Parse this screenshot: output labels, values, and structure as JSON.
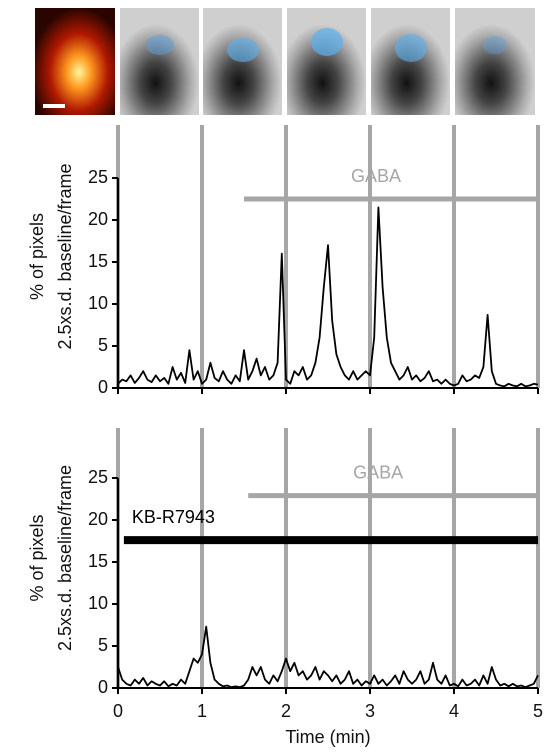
{
  "chart_data": [
    {
      "type": "line",
      "ylabel": [
        "% of pixels",
        "2.5xs.d. baseline/frame"
      ],
      "xlim": [
        0,
        5
      ],
      "ylim": [
        0,
        25
      ],
      "yticks": [
        0,
        5,
        10,
        15,
        20,
        25
      ],
      "markers": [
        0,
        1,
        2,
        3,
        4,
        5
      ],
      "marker_color": "#a6a6a6",
      "annotations": [
        {
          "text": "GABA",
          "x": [
            1.5,
            5
          ],
          "y": 22.5,
          "color": "#a6a6a6"
        }
      ],
      "series": [
        {
          "color": "#000000",
          "x": [
            0,
            0.05,
            0.1,
            0.15,
            0.2,
            0.25,
            0.3,
            0.35,
            0.4,
            0.45,
            0.5,
            0.55,
            0.6,
            0.65,
            0.7,
            0.75,
            0.8,
            0.85,
            0.9,
            0.95,
            1,
            1.05,
            1.1,
            1.15,
            1.2,
            1.25,
            1.3,
            1.35,
            1.4,
            1.45,
            1.5,
            1.55,
            1.6,
            1.65,
            1.7,
            1.75,
            1.8,
            1.85,
            1.9,
            1.95,
            2,
            2.05,
            2.1,
            2.15,
            2.2,
            2.25,
            2.3,
            2.35,
            2.4,
            2.45,
            2.5,
            2.55,
            2.6,
            2.65,
            2.7,
            2.75,
            2.8,
            2.85,
            2.9,
            2.95,
            3,
            3.05,
            3.1,
            3.15,
            3.2,
            3.25,
            3.3,
            3.35,
            3.4,
            3.45,
            3.5,
            3.55,
            3.6,
            3.65,
            3.7,
            3.75,
            3.8,
            3.85,
            3.9,
            3.95,
            4,
            4.05,
            4.1,
            4.15,
            4.2,
            4.25,
            4.3,
            4.35,
            4.4,
            4.45,
            4.5,
            4.55,
            4.6,
            4.65,
            4.7,
            4.75,
            4.8,
            4.85,
            4.9,
            4.95,
            5
          ],
          "values": [
            0.5,
            1,
            0.8,
            1.5,
            0.6,
            1.2,
            2,
            1,
            0.7,
            1.5,
            0.8,
            1.2,
            0.5,
            2.5,
            1,
            1.8,
            0.6,
            4.5,
            1,
            2,
            0.5,
            1,
            3,
            1.2,
            0.8,
            2,
            1,
            0.5,
            1.5,
            0.8,
            4.5,
            1,
            2,
            3.5,
            1.5,
            2.5,
            1,
            1.5,
            3,
            16,
            1,
            0.5,
            2,
            1.5,
            2.5,
            1,
            1.5,
            3,
            6,
            12,
            17,
            8,
            4,
            2.5,
            1.5,
            1,
            2,
            1,
            1.5,
            2,
            1.5,
            6,
            21.5,
            12,
            6,
            3,
            2,
            1,
            1.5,
            2.5,
            1,
            1.5,
            0.8,
            1.2,
            2,
            0.8,
            1,
            0.5,
            1,
            0.5,
            0.3,
            0.5,
            1.5,
            0.8,
            1,
            1.5,
            1.2,
            2.5,
            8.7,
            2,
            0.5,
            0.3,
            0.2,
            0.5,
            0.3,
            0.2,
            0.5,
            0.2,
            0.3,
            0.5,
            0.4
          ]
        }
      ]
    },
    {
      "type": "line",
      "ylabel": [
        "% of pixels",
        "2.5xs.d. baseline/frame"
      ],
      "xlabel": "Time (min)",
      "xlim": [
        0,
        5
      ],
      "ylim": [
        0,
        25
      ],
      "xticks": [
        0,
        1,
        2,
        3,
        4,
        5
      ],
      "yticks": [
        0,
        5,
        10,
        15,
        20,
        25
      ],
      "markers": [
        0,
        1,
        2,
        3,
        4,
        5
      ],
      "marker_color": "#a6a6a6",
      "annotations": [
        {
          "text": "GABA",
          "x": [
            1.55,
            5
          ],
          "y": 22.9,
          "color": "#a6a6a6"
        },
        {
          "text": "KB-R7943",
          "x": [
            0.07,
            5
          ],
          "y": 17.6,
          "color": "#000000"
        }
      ],
      "series": [
        {
          "color": "#000000",
          "x": [
            0,
            0.05,
            0.1,
            0.15,
            0.2,
            0.25,
            0.3,
            0.35,
            0.4,
            0.45,
            0.5,
            0.55,
            0.6,
            0.65,
            0.7,
            0.75,
            0.8,
            0.85,
            0.9,
            0.95,
            1,
            1.05,
            1.1,
            1.15,
            1.2,
            1.25,
            1.3,
            1.35,
            1.4,
            1.45,
            1.5,
            1.55,
            1.6,
            1.65,
            1.7,
            1.75,
            1.8,
            1.85,
            1.9,
            1.95,
            2,
            2.05,
            2.1,
            2.15,
            2.2,
            2.25,
            2.3,
            2.35,
            2.4,
            2.45,
            2.5,
            2.55,
            2.6,
            2.65,
            2.7,
            2.75,
            2.8,
            2.85,
            2.9,
            2.95,
            3,
            3.05,
            3.1,
            3.15,
            3.2,
            3.25,
            3.3,
            3.35,
            3.4,
            3.45,
            3.5,
            3.55,
            3.6,
            3.65,
            3.7,
            3.75,
            3.8,
            3.85,
            3.9,
            3.95,
            4,
            4.05,
            4.1,
            4.15,
            4.2,
            4.25,
            4.3,
            4.35,
            4.4,
            4.45,
            4.5,
            4.55,
            4.6,
            4.65,
            4.7,
            4.75,
            4.8,
            4.85,
            4.9,
            4.95,
            5
          ],
          "values": [
            2.5,
            1,
            0.5,
            0.3,
            1,
            0.5,
            1.2,
            0.3,
            0.8,
            0.5,
            0.3,
            0.8,
            0.2,
            0.5,
            0.3,
            1,
            0.5,
            2,
            3.5,
            3,
            4,
            7.3,
            3,
            1,
            0.5,
            0.2,
            0.3,
            0.1,
            0.2,
            0.1,
            0.3,
            1,
            2.5,
            1.5,
            2.5,
            1,
            0.5,
            1.5,
            0.8,
            2,
            3.5,
            2,
            3,
            1.5,
            2,
            1,
            1.5,
            2.5,
            1,
            2,
            1.5,
            0.8,
            1.5,
            0.5,
            1,
            2,
            0.5,
            1,
            0.3,
            0.8,
            0.5,
            1.5,
            0.5,
            1,
            0.3,
            0.8,
            1.5,
            0.5,
            2,
            1,
            0.5,
            1,
            2,
            0.5,
            1,
            3,
            1,
            0.5,
            1.5,
            0.3,
            0.5,
            0.2,
            1,
            0.3,
            0.5,
            1,
            0.3,
            1.5,
            0.5,
            2.5,
            1,
            0.3,
            0.5,
            0.2,
            0.5,
            0.2,
            0.3,
            0.1,
            0.3,
            0.5,
            1.5
          ]
        }
      ]
    }
  ]
}
